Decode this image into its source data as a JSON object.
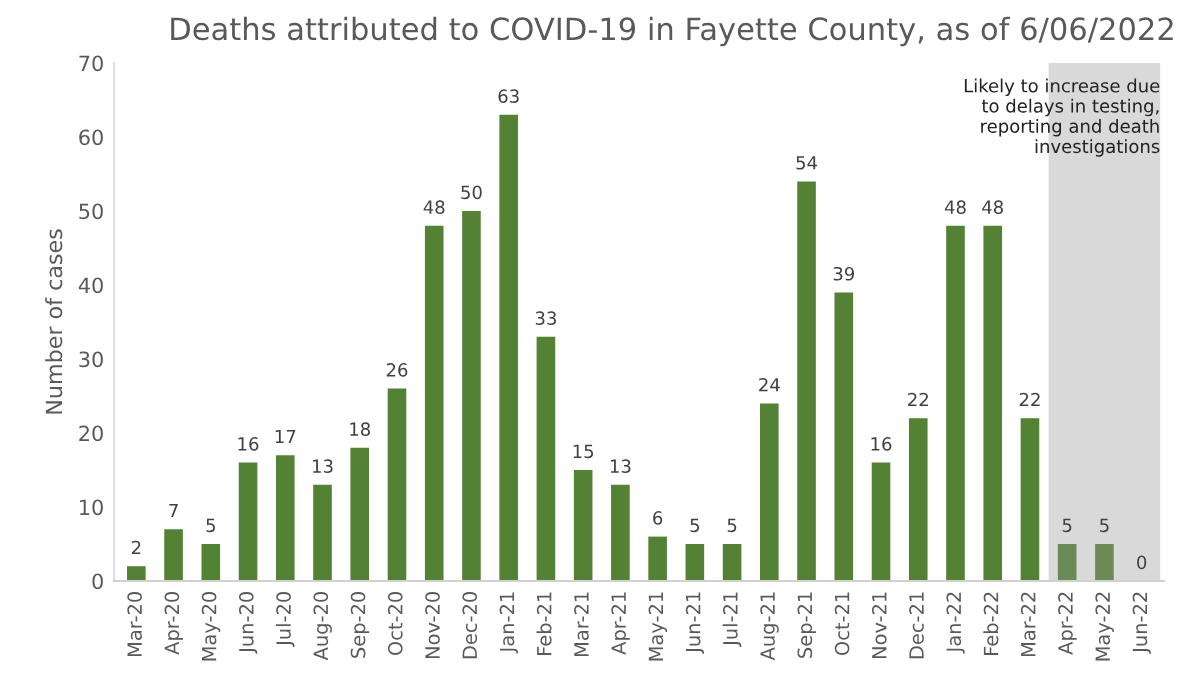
{
  "chart_data": {
    "type": "bar",
    "title": "Deaths attributed to COVID-19 in Fayette County, as of 6/06/2022",
    "ylabel": "Number of cases",
    "categories": [
      "Mar-20",
      "Apr-20",
      "May-20",
      "Jun-20",
      "Jul-20",
      "Aug-20",
      "Sep-20",
      "Oct-20",
      "Nov-20",
      "Dec-20",
      "Jan-21",
      "Feb-21",
      "Mar-21",
      "Apr-21",
      "May-21",
      "Jun-21",
      "Jul-21",
      "Aug-21",
      "Sep-21",
      "Oct-21",
      "Nov-21",
      "Dec-21",
      "Jan-22",
      "Feb-22",
      "Mar-22",
      "Apr-22",
      "May-22",
      "Jun-22"
    ],
    "values": [
      2,
      7,
      5,
      16,
      17,
      13,
      18,
      26,
      48,
      50,
      63,
      33,
      15,
      13,
      6,
      5,
      5,
      24,
      54,
      39,
      16,
      22,
      48,
      48,
      22,
      5,
      5,
      0
    ],
    "colors": [
      "#548235",
      "#548235",
      "#548235",
      "#548235",
      "#548235",
      "#548235",
      "#548235",
      "#548235",
      "#548235",
      "#548235",
      "#548235",
      "#548235",
      "#548235",
      "#548235",
      "#548235",
      "#548235",
      "#548235",
      "#548235",
      "#548235",
      "#548235",
      "#548235",
      "#548235",
      "#548235",
      "#548235",
      "#548235",
      "#6b8a55",
      "#6b8a55",
      "#6b8a55"
    ],
    "ylim": [
      0,
      70
    ],
    "yticks": [
      0,
      10,
      20,
      30,
      40,
      50,
      60,
      70
    ],
    "bands": [
      {
        "axis": "x",
        "from": "Apr-22",
        "to": "Jun-22",
        "label": "Likely to increase due\nto delays in testing,\nreporting and death\ninvestigations",
        "color": "#d9d9d9"
      }
    ],
    "data_labels": true,
    "grid": false,
    "legend": false
  }
}
